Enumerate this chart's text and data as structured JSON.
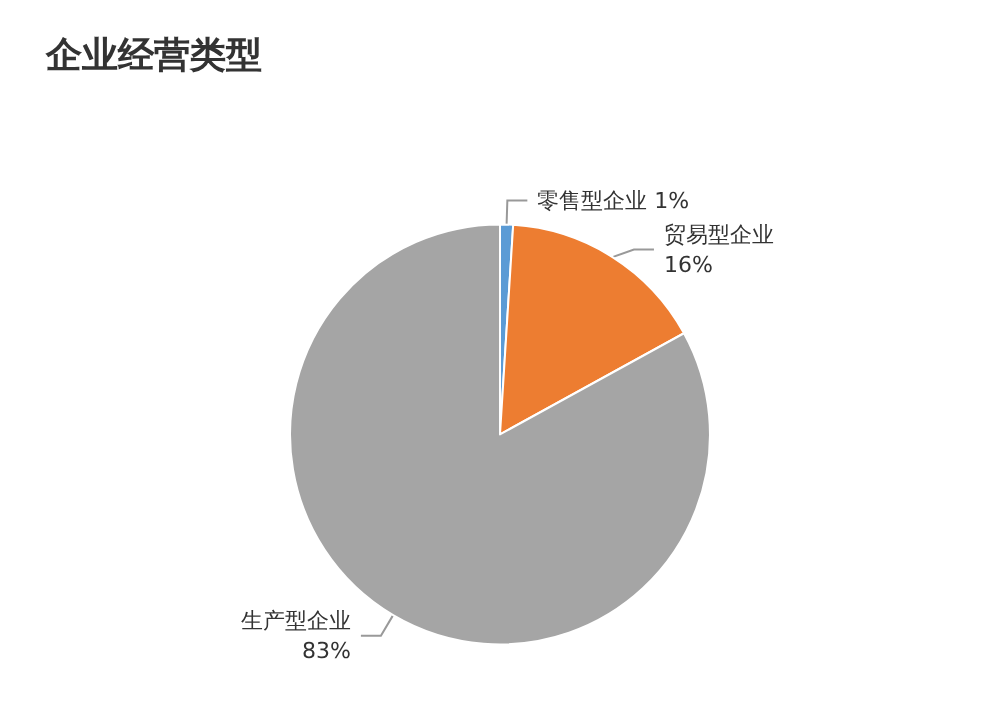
{
  "chart_data": {
    "type": "pie",
    "title": "企业经营类型",
    "categories": [
      "零售型企业",
      "贸易型企业",
      "生产型企业"
    ],
    "values": [
      1,
      16,
      83
    ],
    "colors": [
      "#5b9bd5",
      "#ed7d31",
      "#a5a5a5"
    ],
    "value_labels": [
      "1%",
      "16%",
      "83%"
    ],
    "legend": false
  }
}
